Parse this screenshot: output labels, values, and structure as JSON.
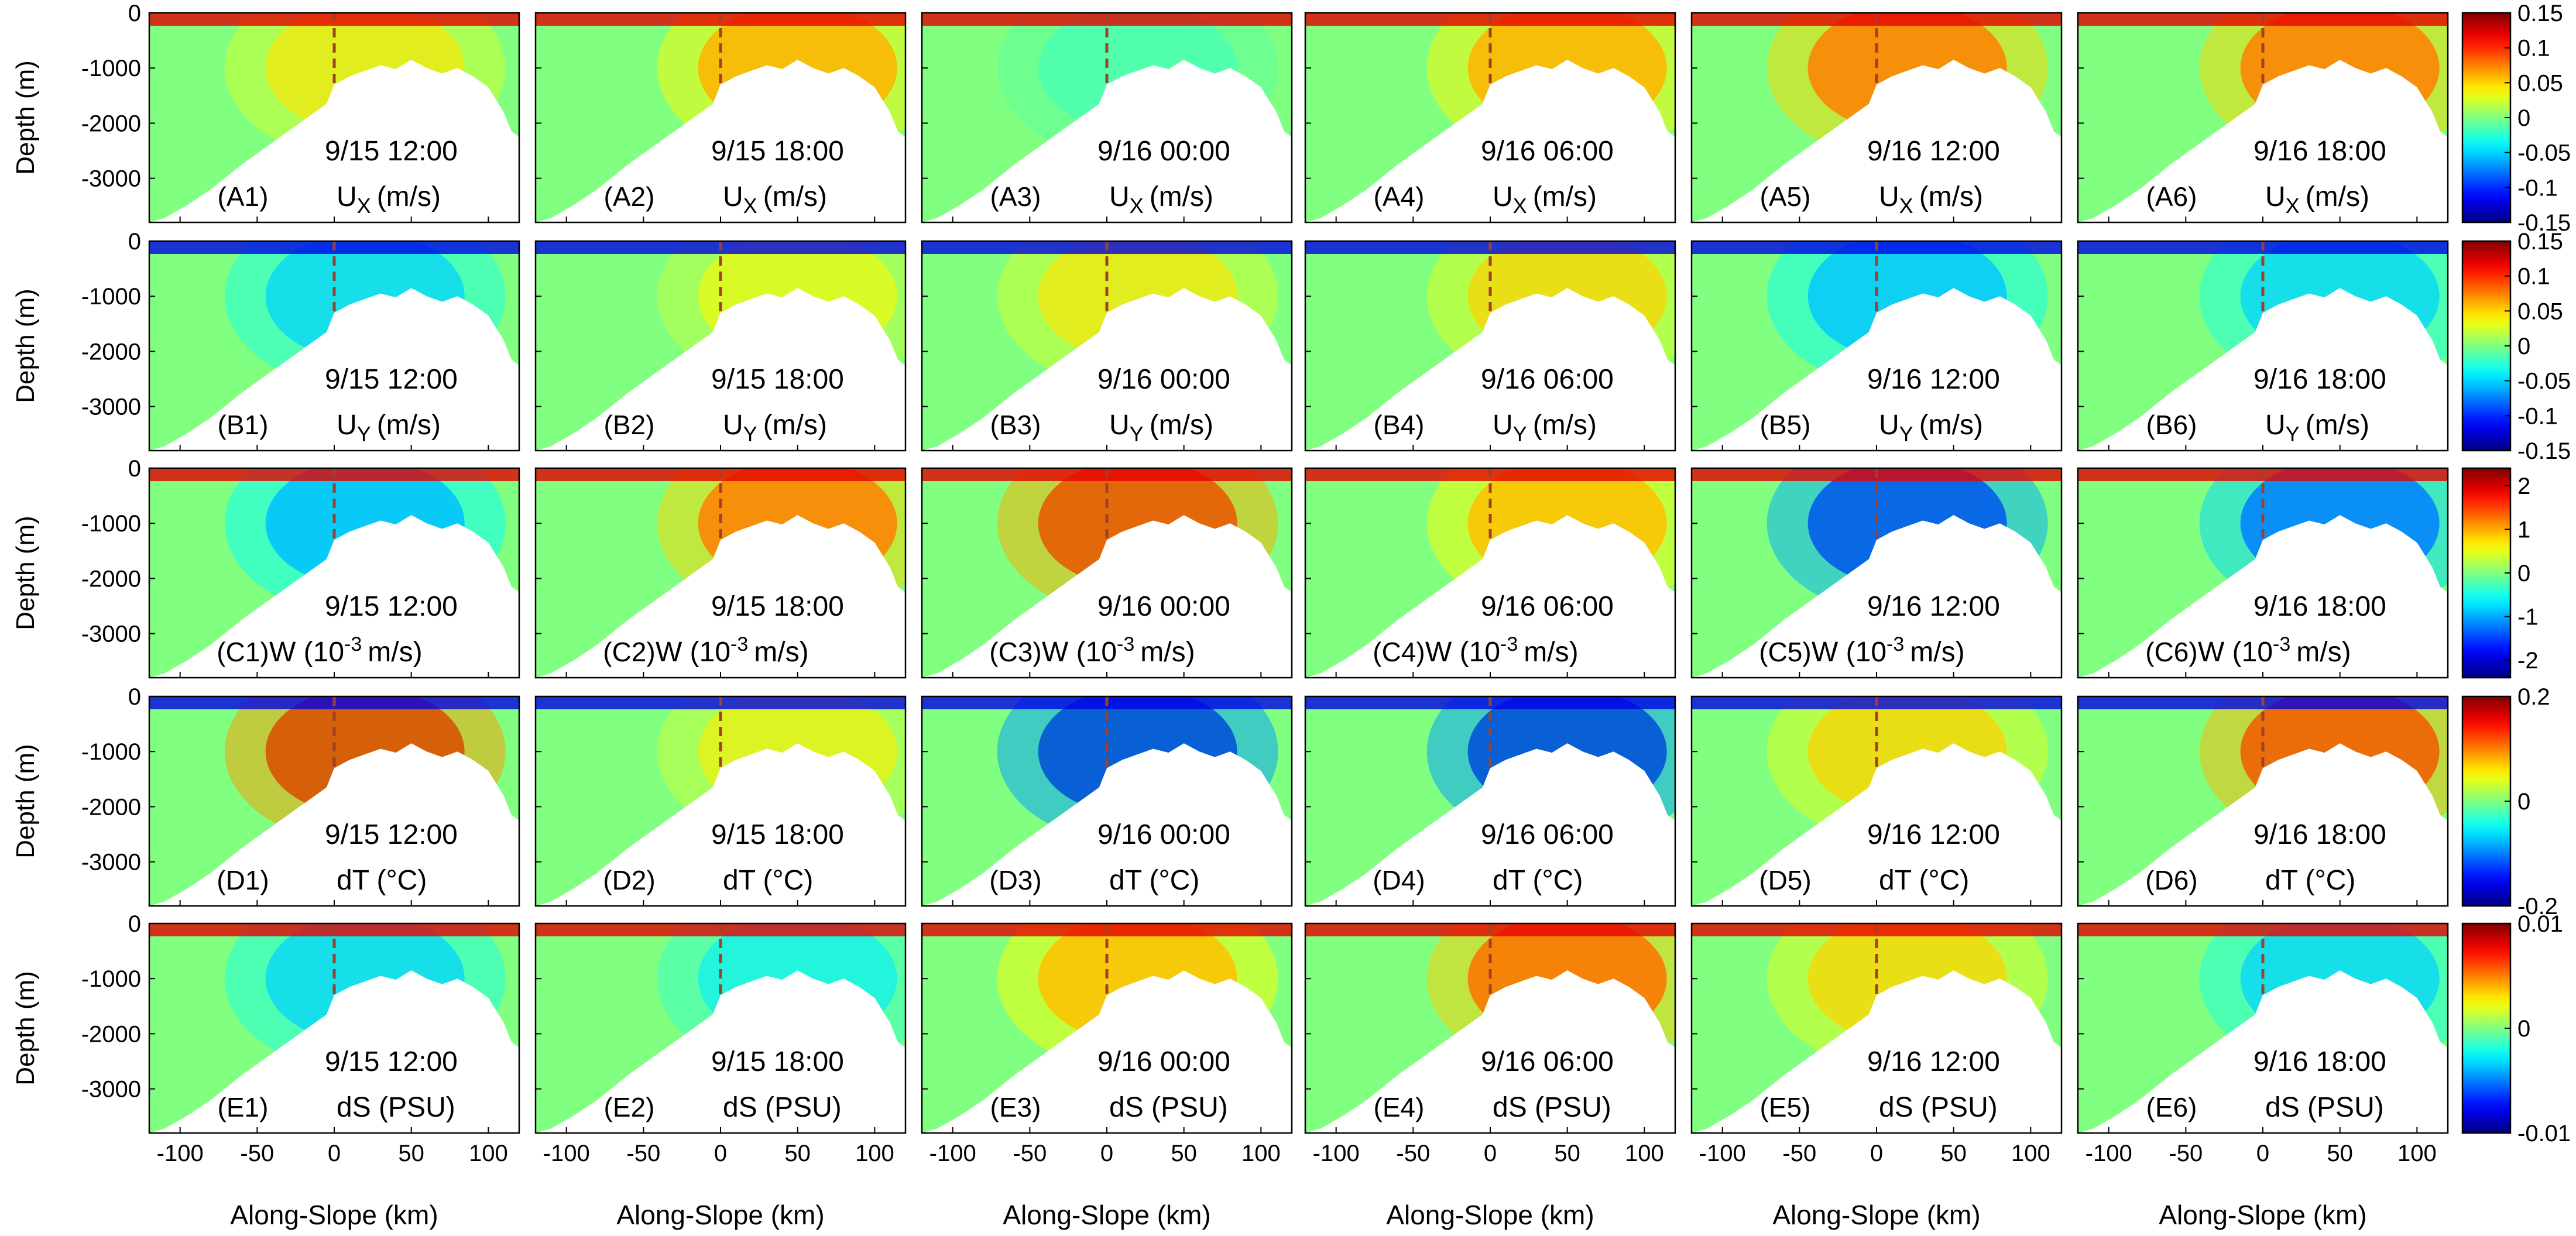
{
  "figure": {
    "x_axis_label": "Along-Slope (km)",
    "y_axis_label": "Depth (m)",
    "columns": [
      {
        "id": 1,
        "time": "9/15 12:00"
      },
      {
        "id": 2,
        "time": "9/15 18:00"
      },
      {
        "id": 3,
        "time": "9/16 00:00"
      },
      {
        "id": 4,
        "time": "9/16 06:00"
      },
      {
        "id": 5,
        "time": "9/16 12:00"
      },
      {
        "id": 6,
        "time": "9/16 18:00"
      }
    ],
    "rows": [
      {
        "letter": "A",
        "variable": "U",
        "subscript": "X",
        "unit": "(m/s)"
      },
      {
        "letter": "B",
        "variable": "U",
        "subscript": "Y",
        "unit": "(m/s)"
      },
      {
        "letter": "C",
        "variable": "W (10",
        "superscript": "-3",
        "unit": "m/s)"
      },
      {
        "letter": "D",
        "variable": "dT (°C)"
      },
      {
        "letter": "E",
        "variable": "dS (PSU)"
      }
    ]
  },
  "chart_data": {
    "type": "heatmap",
    "layout": "5 rows x 6 columns of along-slope depth sections",
    "x": {
      "label": "Along-Slope (km)",
      "range": [
        -120,
        120
      ],
      "ticks": [
        -100,
        -50,
        0,
        50,
        100
      ]
    },
    "y": {
      "label": "Depth (m)",
      "range": [
        -3800,
        0
      ],
      "ticks": [
        0,
        -1000,
        -2000,
        -3000
      ]
    },
    "reference_line": {
      "x": 0,
      "style": "dashed",
      "color": "#a0402a"
    },
    "colormap": "jet",
    "colorbars": [
      {
        "row": "A",
        "min": -0.15,
        "max": 0.15,
        "ticks": [
          0.15,
          0.1,
          0.05,
          0,
          -0.05,
          -0.1,
          -0.15
        ]
      },
      {
        "row": "B",
        "min": -0.15,
        "max": 0.15,
        "ticks": [
          0.15,
          0.1,
          0.05,
          0,
          -0.05,
          -0.1,
          -0.15
        ]
      },
      {
        "row": "C",
        "min": -2.4,
        "max": 2.4,
        "ticks": [
          2,
          1,
          0,
          -1,
          -2
        ]
      },
      {
        "row": "D",
        "min": -0.2,
        "max": 0.2,
        "ticks": [
          0.2,
          0,
          -0.2
        ]
      },
      {
        "row": "E",
        "min": -0.01,
        "max": 0.01,
        "ticks": [
          0.01,
          0,
          -0.01
        ]
      }
    ],
    "panels_description_values": {
      "A": [
        0.05,
        0.08,
        -0.02,
        0.08,
        0.1,
        0.1
      ],
      "B": [
        -0.06,
        0.04,
        0.05,
        0.06,
        -0.07,
        -0.06
      ],
      "C": [
        -1.2,
        1.6,
        2.0,
        1.2,
        -2.0,
        -1.6
      ],
      "D": [
        0.18,
        0.06,
        -0.18,
        -0.18,
        0.08,
        0.16
      ],
      "E": [
        -0.004,
        -0.003,
        0.005,
        0.007,
        0.004,
        -0.004
      ]
    }
  }
}
